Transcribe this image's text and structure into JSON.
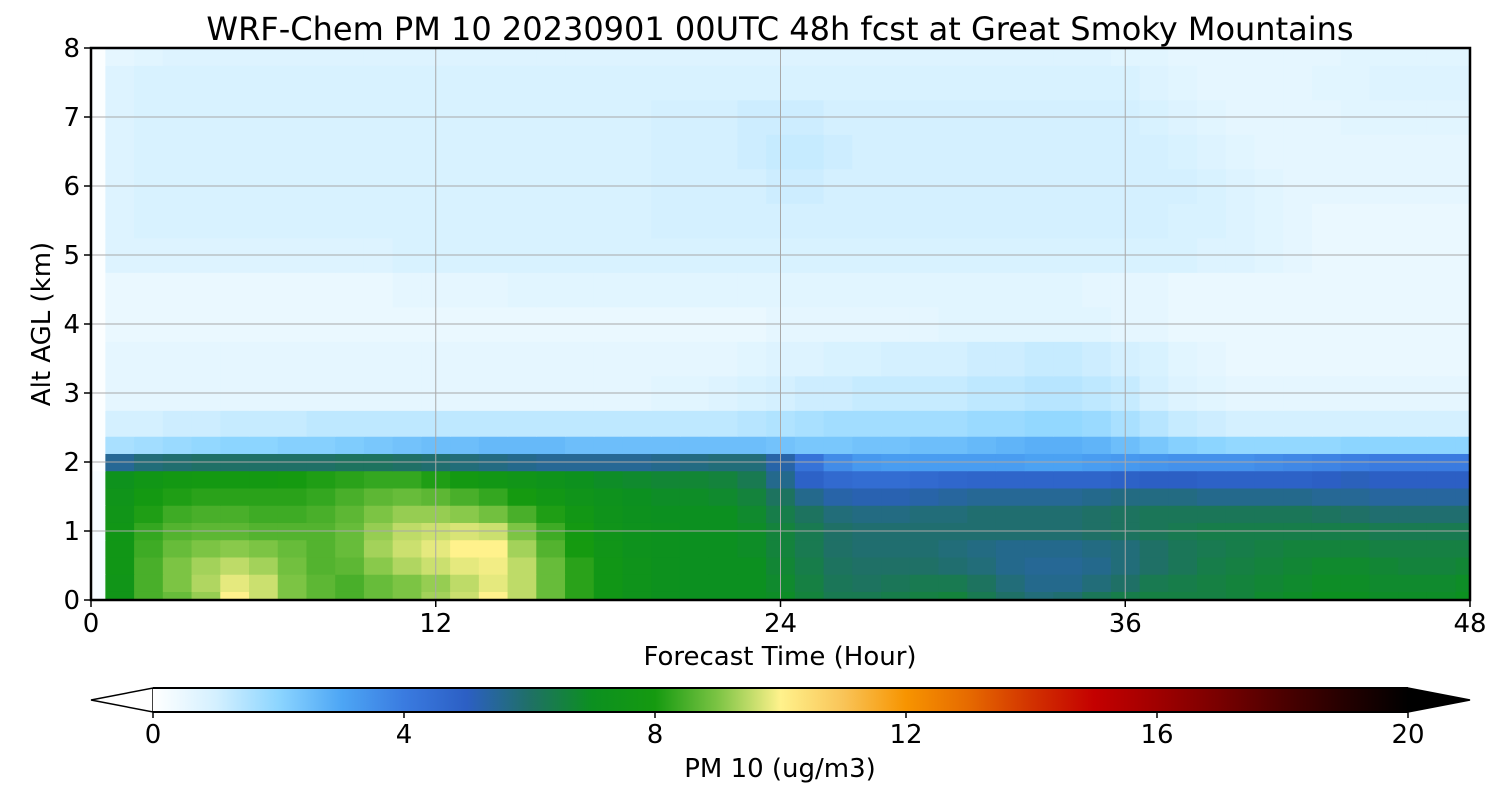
{
  "chart_data": {
    "type": "heatmap",
    "title": "WRF-Chem PM 10  20230901 00UTC 48h fcst at Great Smoky Mountains",
    "xlabel": "Forecast Time (Hour)",
    "ylabel": "Alt AGL (km)",
    "xlim": [
      0,
      48
    ],
    "ylim": [
      0,
      8
    ],
    "x_ticks": [
      "0",
      "12",
      "24",
      "36",
      "48"
    ],
    "y_ticks": [
      "0",
      "1",
      "2",
      "3",
      "4",
      "5",
      "6",
      "7",
      "8"
    ],
    "grid": true,
    "colorbar": {
      "label": "PM 10  (ug/m3)",
      "ticks": [
        "0",
        "4",
        "8",
        "12",
        "16",
        "20"
      ],
      "range": [
        0,
        20
      ],
      "extend": "both",
      "orientation": "horizontal",
      "stops": [
        {
          "value": 0,
          "color": "#ffffff"
        },
        {
          "value": 1,
          "color": "#d4f0ff"
        },
        {
          "value": 2,
          "color": "#8cd5ff"
        },
        {
          "value": 3,
          "color": "#4da6f5"
        },
        {
          "value": 4,
          "color": "#3a7be0"
        },
        {
          "value": 5,
          "color": "#2c5fc4"
        },
        {
          "value": 6,
          "color": "#1f7066"
        },
        {
          "value": 7,
          "color": "#0c9020"
        },
        {
          "value": 8,
          "color": "#159a10"
        },
        {
          "value": 9,
          "color": "#7cc444"
        },
        {
          "value": 10,
          "color": "#fff28c"
        },
        {
          "value": 11,
          "color": "#f9c458"
        },
        {
          "value": 12,
          "color": "#f79400"
        },
        {
          "value": 13,
          "color": "#e66a00"
        },
        {
          "value": 14,
          "color": "#d23200"
        },
        {
          "value": 15,
          "color": "#c40000"
        },
        {
          "value": 16,
          "color": "#a00000"
        },
        {
          "value": 17,
          "color": "#780000"
        },
        {
          "value": 18,
          "color": "#4c0000"
        },
        {
          "value": 19,
          "color": "#240000"
        },
        {
          "value": 20,
          "color": "#000000"
        }
      ]
    },
    "hours": [
      0,
      1,
      2,
      3,
      4,
      5,
      6,
      7,
      8,
      9,
      10,
      11,
      12,
      13,
      14,
      15,
      16,
      17,
      18,
      19,
      20,
      21,
      22,
      23,
      24,
      25,
      26,
      27,
      28,
      29,
      30,
      31,
      32,
      33,
      34,
      35,
      36,
      37,
      38,
      39,
      40,
      41,
      42,
      43,
      44,
      45,
      46,
      47,
      48
    ],
    "altitudes_km": [
      0,
      0.25,
      0.5,
      0.75,
      1,
      1.25,
      1.5,
      1.75,
      2,
      2.25,
      2.5,
      3,
      3.5,
      4,
      4.5,
      5,
      5.5,
      6,
      6.5,
      7,
      7.5,
      8
    ],
    "values_note": "PM 10 concentration (ug/m3) as a function of altitude (rows) and forecast hour (columns)",
    "values": [
      [
        0.2,
        7.5,
        8.5,
        8.8,
        9.2,
        10.0,
        9.6,
        9.0,
        8.7,
        8.5,
        8.8,
        9.0,
        9.3,
        9.6,
        10.0,
        9.5,
        8.8,
        8.2,
        7.6,
        7.3,
        7.1,
        7.0,
        7.0,
        7.0,
        6.9,
        6.6,
        6.3,
        6.3,
        6.4,
        6.5,
        6.6,
        6.3,
        6.0,
        5.8,
        5.9,
        6.2,
        6.4,
        6.5,
        6.5,
        6.5,
        6.6,
        6.8,
        6.9,
        7.0,
        7.0,
        6.9,
        6.9,
        6.9,
        7.0
      ],
      [
        0.2,
        7.5,
        8.5,
        9.0,
        9.4,
        9.8,
        9.6,
        9.0,
        8.7,
        8.5,
        8.8,
        9.0,
        9.2,
        9.5,
        9.8,
        9.5,
        8.8,
        8.2,
        7.6,
        7.3,
        7.1,
        7.0,
        7.0,
        7.0,
        6.8,
        6.5,
        6.2,
        6.1,
        6.2,
        6.3,
        6.3,
        6.1,
        5.8,
        5.6,
        5.6,
        5.8,
        6.0,
        6.3,
        6.4,
        6.5,
        6.6,
        6.7,
        6.8,
        6.9,
        6.9,
        6.8,
        6.8,
        6.8,
        6.9
      ],
      [
        0.2,
        7.6,
        8.5,
        9.0,
        9.3,
        9.5,
        9.3,
        8.9,
        8.6,
        8.7,
        9.1,
        9.4,
        9.6,
        9.8,
        9.9,
        9.5,
        8.8,
        8.2,
        7.6,
        7.3,
        7.1,
        7.0,
        7.0,
        7.0,
        6.7,
        6.4,
        6.1,
        6.0,
        6.0,
        6.0,
        5.9,
        5.8,
        5.6,
        5.5,
        5.5,
        5.6,
        5.8,
        6.0,
        6.2,
        6.4,
        6.5,
        6.6,
        6.7,
        6.8,
        6.8,
        6.7,
        6.6,
        6.6,
        6.7
      ],
      [
        0.2,
        7.6,
        8.4,
        8.8,
        9.0,
        9.1,
        9.0,
        8.8,
        8.6,
        8.8,
        9.3,
        9.6,
        9.8,
        10.0,
        10.0,
        9.3,
        8.6,
        8.0,
        7.5,
        7.2,
        7.1,
        7.0,
        7.0,
        6.9,
        6.6,
        6.3,
        6.0,
        5.9,
        5.9,
        5.9,
        5.8,
        5.7,
        5.6,
        5.6,
        5.6,
        5.7,
        5.8,
        6.0,
        6.2,
        6.3,
        6.4,
        6.5,
        6.6,
        6.6,
        6.6,
        6.5,
        6.5,
        6.5,
        6.5
      ],
      [
        0.2,
        7.6,
        8.3,
        8.6,
        8.7,
        8.7,
        8.6,
        8.6,
        8.6,
        8.8,
        9.2,
        9.5,
        9.6,
        9.7,
        9.6,
        9.0,
        8.4,
        7.9,
        7.4,
        7.2,
        7.1,
        7.0,
        7.0,
        6.9,
        6.6,
        6.3,
        6.0,
        5.9,
        5.9,
        5.9,
        5.9,
        5.9,
        5.9,
        5.9,
        5.9,
        6.0,
        6.1,
        6.2,
        6.3,
        6.4,
        6.4,
        6.4,
        6.4,
        6.4,
        6.4,
        6.3,
        6.3,
        6.3,
        6.3
      ],
      [
        0.2,
        7.5,
        8.1,
        8.4,
        8.5,
        8.5,
        8.4,
        8.4,
        8.5,
        8.7,
        9.0,
        9.2,
        9.2,
        9.1,
        8.9,
        8.5,
        8.1,
        7.7,
        7.3,
        7.1,
        7.0,
        7.0,
        7.0,
        6.8,
        6.4,
        6.1,
        5.8,
        5.7,
        5.7,
        5.8,
        5.8,
        5.9,
        5.9,
        5.9,
        5.9,
        6.0,
        6.1,
        6.2,
        6.2,
        6.2,
        6.2,
        6.2,
        6.2,
        6.1,
        6.0,
        5.9,
        5.9,
        5.9,
        5.9
      ],
      [
        0.2,
        7.4,
        7.9,
        8.1,
        8.2,
        8.2,
        8.2,
        8.2,
        8.3,
        8.5,
        8.7,
        8.8,
        8.7,
        8.5,
        8.3,
        8.0,
        7.7,
        7.4,
        7.2,
        7.0,
        6.9,
        6.9,
        6.8,
        6.6,
        6.1,
        5.6,
        5.3,
        5.2,
        5.2,
        5.3,
        5.4,
        5.5,
        5.5,
        5.5,
        5.5,
        5.6,
        5.7,
        5.7,
        5.7,
        5.6,
        5.6,
        5.6,
        5.6,
        5.5,
        5.5,
        5.4,
        5.4,
        5.4,
        5.4
      ],
      [
        0.2,
        7.2,
        7.6,
        7.8,
        7.9,
        7.9,
        7.9,
        8.0,
        8.1,
        8.2,
        8.3,
        8.3,
        8.1,
        7.9,
        7.7,
        7.5,
        7.3,
        7.1,
        6.9,
        6.8,
        6.7,
        6.7,
        6.6,
        6.3,
        5.6,
        4.9,
        4.6,
        4.5,
        4.5,
        4.6,
        4.7,
        4.8,
        4.8,
        4.8,
        4.8,
        4.8,
        4.9,
        5.0,
        5.0,
        4.9,
        4.9,
        4.9,
        4.9,
        5.0,
        5.1,
        5.0,
        5.0,
        5.0,
        5.0
      ],
      [
        0.1,
        5.5,
        5.8,
        5.9,
        6.0,
        6.0,
        6.0,
        6.0,
        6.0,
        6.1,
        6.1,
        6.0,
        5.9,
        5.8,
        5.7,
        5.6,
        5.5,
        5.5,
        5.5,
        5.5,
        5.6,
        5.7,
        5.8,
        5.8,
        5.3,
        4.3,
        3.6,
        3.3,
        3.2,
        3.2,
        3.2,
        3.2,
        3.2,
        3.1,
        3.1,
        3.2,
        3.3,
        3.4,
        3.5,
        3.5,
        3.5,
        3.6,
        3.7,
        3.8,
        3.9,
        4.0,
        4.0,
        4.0,
        4.0
      ],
      [
        0.1,
        1.6,
        1.7,
        1.8,
        1.9,
        2.0,
        2.0,
        2.1,
        2.1,
        2.2,
        2.3,
        2.4,
        2.5,
        2.5,
        2.6,
        2.6,
        2.6,
        2.5,
        2.5,
        2.5,
        2.5,
        2.5,
        2.5,
        2.5,
        2.4,
        2.3,
        2.3,
        2.4,
        2.4,
        2.5,
        2.5,
        2.6,
        2.7,
        2.8,
        2.8,
        2.7,
        2.5,
        2.3,
        2.1,
        2.0,
        1.9,
        1.9,
        1.9,
        1.9,
        2.0,
        2.0,
        2.0,
        2.0,
        2.0
      ],
      [
        0.1,
        1.0,
        1.0,
        1.1,
        1.1,
        1.2,
        1.2,
        1.2,
        1.3,
        1.3,
        1.3,
        1.3,
        1.3,
        1.3,
        1.3,
        1.3,
        1.3,
        1.3,
        1.3,
        1.3,
        1.3,
        1.3,
        1.3,
        1.4,
        1.5,
        1.6,
        1.7,
        1.7,
        1.7,
        1.7,
        1.7,
        1.8,
        1.8,
        1.9,
        1.9,
        1.8,
        1.6,
        1.4,
        1.2,
        1.1,
        1.0,
        1.0,
        1.0,
        1.0,
        1.0,
        1.0,
        1.0,
        1.0,
        1.0
      ],
      [
        0.1,
        0.6,
        0.6,
        0.6,
        0.6,
        0.6,
        0.6,
        0.6,
        0.6,
        0.6,
        0.6,
        0.6,
        0.6,
        0.6,
        0.6,
        0.6,
        0.6,
        0.6,
        0.6,
        0.6,
        0.7,
        0.7,
        0.8,
        0.9,
        1.0,
        1.1,
        1.1,
        1.2,
        1.2,
        1.2,
        1.2,
        1.3,
        1.3,
        1.4,
        1.4,
        1.3,
        1.2,
        1.0,
        0.8,
        0.7,
        0.6,
        0.6,
        0.6,
        0.6,
        0.6,
        0.6,
        0.6,
        0.6,
        0.6
      ],
      [
        0.1,
        0.6,
        0.6,
        0.6,
        0.6,
        0.6,
        0.6,
        0.6,
        0.6,
        0.6,
        0.6,
        0.6,
        0.6,
        0.6,
        0.6,
        0.6,
        0.6,
        0.6,
        0.6,
        0.6,
        0.6,
        0.6,
        0.6,
        0.7,
        0.8,
        0.8,
        0.9,
        0.9,
        1.0,
        1.0,
        1.0,
        1.1,
        1.1,
        1.2,
        1.2,
        1.1,
        1.0,
        0.9,
        0.7,
        0.6,
        0.5,
        0.5,
        0.5,
        0.5,
        0.5,
        0.5,
        0.5,
        0.5,
        0.5
      ],
      [
        0.1,
        0.5,
        0.5,
        0.5,
        0.5,
        0.5,
        0.5,
        0.5,
        0.5,
        0.5,
        0.5,
        0.5,
        0.5,
        0.5,
        0.5,
        0.5,
        0.5,
        0.5,
        0.5,
        0.5,
        0.5,
        0.5,
        0.5,
        0.5,
        0.6,
        0.6,
        0.6,
        0.6,
        0.6,
        0.6,
        0.7,
        0.7,
        0.7,
        0.7,
        0.7,
        0.7,
        0.6,
        0.6,
        0.5,
        0.5,
        0.5,
        0.5,
        0.5,
        0.5,
        0.5,
        0.5,
        0.5,
        0.5,
        0.5
      ],
      [
        0.1,
        0.5,
        0.5,
        0.5,
        0.5,
        0.5,
        0.5,
        0.5,
        0.5,
        0.5,
        0.5,
        0.6,
        0.6,
        0.6,
        0.6,
        0.7,
        0.7,
        0.7,
        0.7,
        0.7,
        0.7,
        0.7,
        0.7,
        0.7,
        0.7,
        0.7,
        0.7,
        0.7,
        0.7,
        0.7,
        0.7,
        0.7,
        0.7,
        0.7,
        0.7,
        0.6,
        0.6,
        0.6,
        0.5,
        0.5,
        0.5,
        0.5,
        0.5,
        0.5,
        0.5,
        0.5,
        0.5,
        0.5,
        0.5
      ],
      [
        0.1,
        0.8,
        0.8,
        0.8,
        0.8,
        0.8,
        0.8,
        0.8,
        0.8,
        0.8,
        0.8,
        0.9,
        0.9,
        0.9,
        0.9,
        0.9,
        0.9,
        0.9,
        0.9,
        0.9,
        0.9,
        0.9,
        0.9,
        0.9,
        0.9,
        0.9,
        0.9,
        0.9,
        0.9,
        0.9,
        0.9,
        0.9,
        0.9,
        0.9,
        0.9,
        0.9,
        0.9,
        0.9,
        0.9,
        0.8,
        0.8,
        0.7,
        0.6,
        0.5,
        0.5,
        0.5,
        0.5,
        0.5,
        0.5
      ],
      [
        0.1,
        0.8,
        0.9,
        0.9,
        0.9,
        0.9,
        0.9,
        0.9,
        0.9,
        0.9,
        0.9,
        0.9,
        0.9,
        0.9,
        0.9,
        0.9,
        0.9,
        0.9,
        0.9,
        0.9,
        1.0,
        1.0,
        1.0,
        1.0,
        1.0,
        1.0,
        1.0,
        1.0,
        1.0,
        1.0,
        1.0,
        1.0,
        1.0,
        1.0,
        1.0,
        1.0,
        1.0,
        1.0,
        0.9,
        0.9,
        0.8,
        0.7,
        0.6,
        0.5,
        0.5,
        0.5,
        0.5,
        0.5,
        0.5
      ],
      [
        0.1,
        0.8,
        0.9,
        0.9,
        0.9,
        0.9,
        0.9,
        0.9,
        0.9,
        0.9,
        0.9,
        0.9,
        0.9,
        0.9,
        0.9,
        0.9,
        0.9,
        0.9,
        0.9,
        0.9,
        1.0,
        1.0,
        1.0,
        1.0,
        1.1,
        1.1,
        1.0,
        1.0,
        1.0,
        1.0,
        1.0,
        1.0,
        1.0,
        1.0,
        1.0,
        1.0,
        1.0,
        1.0,
        1.0,
        0.9,
        0.8,
        0.7,
        0.6,
        0.6,
        0.6,
        0.6,
        0.6,
        0.6,
        0.6
      ],
      [
        0.1,
        0.8,
        0.9,
        0.9,
        0.9,
        0.9,
        0.9,
        0.9,
        0.9,
        0.9,
        0.9,
        0.9,
        0.9,
        0.9,
        0.9,
        0.9,
        0.9,
        0.9,
        0.9,
        0.9,
        1.0,
        1.0,
        1.0,
        1.1,
        1.2,
        1.2,
        1.1,
        1.0,
        1.0,
        1.0,
        1.0,
        1.0,
        1.0,
        1.0,
        1.0,
        1.0,
        1.0,
        1.0,
        0.9,
        0.8,
        0.7,
        0.6,
        0.6,
        0.6,
        0.6,
        0.6,
        0.6,
        0.6,
        0.6
      ],
      [
        0.1,
        0.8,
        0.9,
        0.9,
        0.9,
        0.9,
        0.9,
        0.9,
        0.9,
        0.9,
        0.9,
        0.9,
        0.9,
        0.9,
        0.9,
        0.9,
        0.9,
        0.9,
        0.9,
        0.9,
        1.0,
        1.0,
        1.0,
        1.1,
        1.1,
        1.1,
        1.0,
        1.0,
        1.0,
        1.0,
        1.0,
        1.0,
        1.0,
        1.0,
        1.0,
        1.0,
        1.0,
        0.9,
        0.8,
        0.7,
        0.6,
        0.6,
        0.6,
        0.6,
        0.7,
        0.7,
        0.7,
        0.7,
        0.7
      ],
      [
        0.1,
        0.8,
        0.9,
        0.9,
        0.9,
        0.9,
        0.9,
        0.9,
        0.9,
        0.9,
        0.9,
        0.9,
        0.9,
        0.9,
        0.9,
        0.9,
        0.9,
        0.9,
        0.9,
        0.9,
        0.9,
        0.9,
        0.9,
        0.9,
        0.9,
        0.9,
        0.9,
        0.9,
        0.9,
        0.9,
        0.9,
        0.9,
        0.9,
        0.9,
        0.9,
        0.9,
        0.9,
        0.8,
        0.7,
        0.6,
        0.6,
        0.6,
        0.6,
        0.7,
        0.7,
        0.8,
        0.8,
        0.8,
        0.8
      ],
      [
        0.1,
        0.6,
        0.7,
        0.8,
        0.8,
        0.8,
        0.8,
        0.8,
        0.8,
        0.8,
        0.8,
        0.8,
        0.8,
        0.8,
        0.8,
        0.8,
        0.8,
        0.8,
        0.8,
        0.8,
        0.8,
        0.8,
        0.8,
        0.8,
        0.8,
        0.8,
        0.8,
        0.8,
        0.8,
        0.8,
        0.8,
        0.8,
        0.8,
        0.8,
        0.8,
        0.8,
        0.7,
        0.7,
        0.6,
        0.6,
        0.6,
        0.6,
        0.6,
        0.6,
        0.7,
        0.7,
        0.7,
        0.7,
        0.7
      ]
    ]
  }
}
